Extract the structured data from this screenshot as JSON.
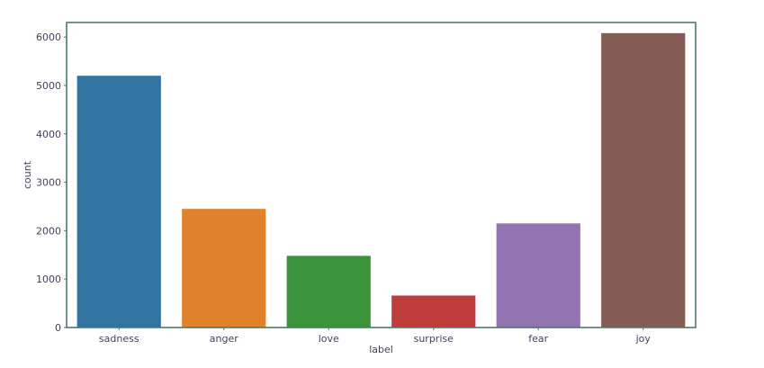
{
  "chart_data": {
    "type": "bar",
    "categories": [
      "sadness",
      "anger",
      "love",
      "surprise",
      "fear",
      "joy"
    ],
    "values": [
      5200,
      2450,
      1480,
      660,
      2150,
      6080
    ],
    "colors": [
      "#3274a1",
      "#e1812c",
      "#3a923a",
      "#c03d3e",
      "#9372b2",
      "#845b53"
    ],
    "xlabel": "label",
    "ylabel": "count",
    "ylim": [
      0,
      6300
    ],
    "yticks": [
      0,
      1000,
      2000,
      3000,
      4000,
      5000,
      6000
    ],
    "grid": false,
    "axes_color": "#4c7a6d",
    "text_color": "#4a3b5c"
  }
}
